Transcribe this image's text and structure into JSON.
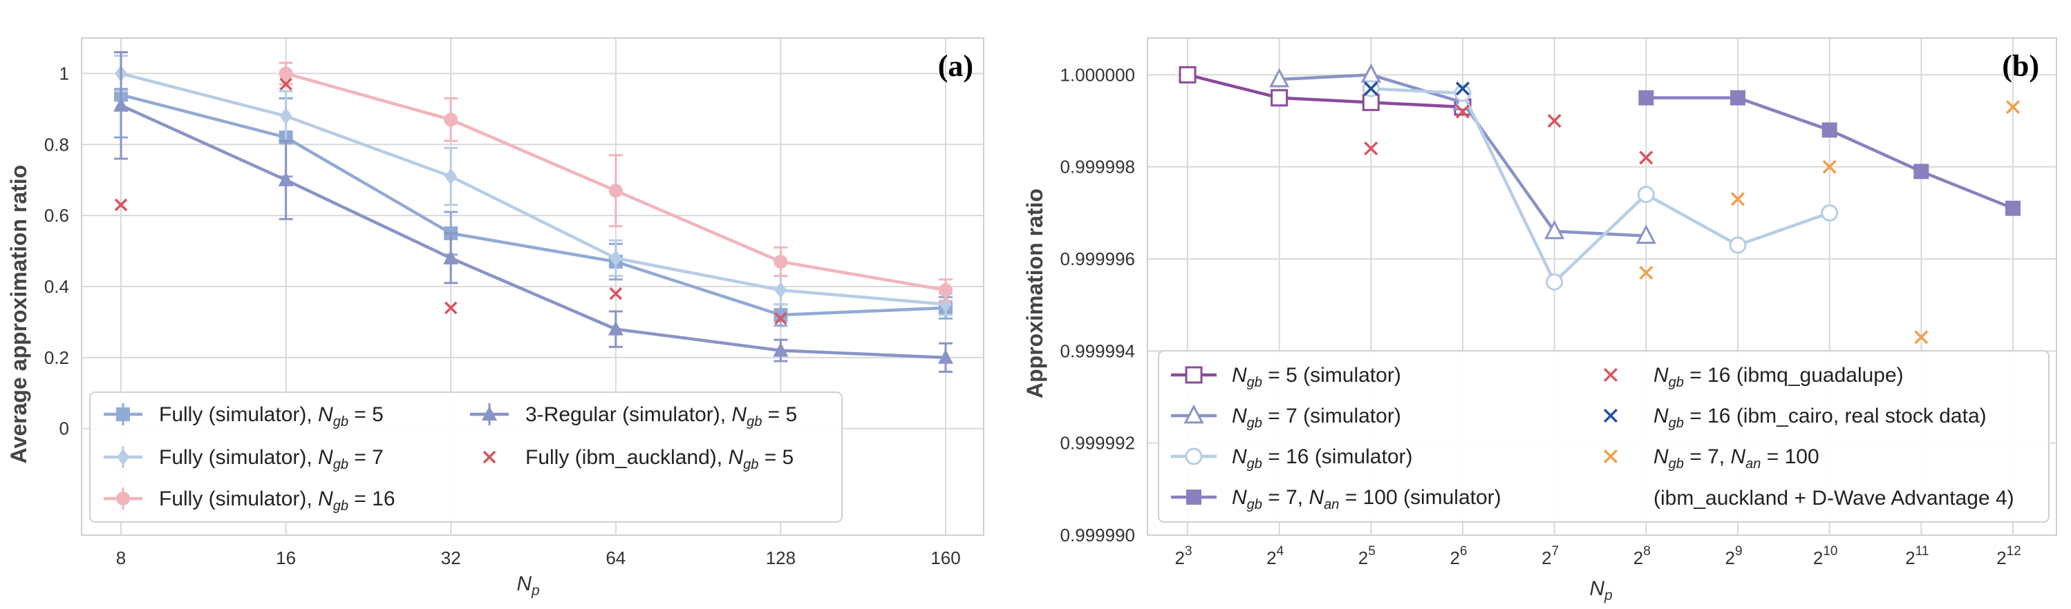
{
  "chart_data": [
    {
      "type": "line",
      "panel_label": "(a)",
      "xlabel": "N_p",
      "ylabel": "Average approximation ratio",
      "categories": [
        "8",
        "16",
        "32",
        "64",
        "128",
        "160"
      ],
      "ylim": [
        -0.3,
        1.1
      ],
      "yticks": [
        "0",
        "0.2",
        "0.4",
        "0.6",
        "0.8",
        "1"
      ],
      "yticks_values": [
        0,
        0.2,
        0.4,
        0.6,
        0.8,
        1.0
      ],
      "grid": true,
      "series": [
        {
          "name": "Fully (simulator), N_gb = 5",
          "legend_text": "Fully (simulator), ",
          "legend_sym": "N",
          "legend_sub": "gb",
          "legend_tail": " = 5",
          "color": "#91aad4",
          "marker": "square",
          "start": 0,
          "values": [
            0.94,
            0.82,
            0.55,
            0.47,
            0.32,
            0.34
          ],
          "errors": [
            0.12,
            0.11,
            0.06,
            0.05,
            0.03,
            0.03
          ]
        },
        {
          "name": "Fully (simulator), N_gb = 7",
          "legend_text": "Fully (simulator), ",
          "legend_sym": "N",
          "legend_sub": "gb",
          "legend_tail": " = 7",
          "color": "#b6cde6",
          "marker": "diamond",
          "start": 0,
          "values": [
            1.0,
            0.88,
            0.71,
            0.48,
            0.39,
            0.35
          ],
          "errors": [
            0.05,
            0.07,
            0.08,
            0.05,
            0.04,
            0.03
          ]
        },
        {
          "name": "Fully (simulator), N_gb = 16",
          "legend_text": "Fully (simulator), ",
          "legend_sym": "N",
          "legend_sub": "gb",
          "legend_tail": " = 16",
          "color": "#f2b4bc",
          "marker": "circle",
          "start": 1,
          "values": [
            null,
            1.0,
            0.87,
            0.67,
            0.47,
            0.39
          ],
          "errors": [
            null,
            0.03,
            0.06,
            0.1,
            0.04,
            0.03
          ]
        },
        {
          "name": "3-Regular (simulator), N_gb = 5",
          "legend_text": "3-Regular (simulator), ",
          "legend_sym": "N",
          "legend_sub": "gb",
          "legend_tail": " = 5",
          "color": "#8a93c6",
          "marker": "triangle",
          "start": 0,
          "values": [
            0.91,
            0.7,
            0.48,
            0.28,
            0.22,
            0.2
          ],
          "errors": [
            0.15,
            0.11,
            0.07,
            0.05,
            0.03,
            0.04
          ]
        },
        {
          "name": "Fully (ibm_auckland), N_gb = 5",
          "legend_text": "Fully (ibm_auckland), ",
          "legend_sym": "N",
          "legend_sub": "gb",
          "legend_tail": " = 5",
          "color": "#d9545e",
          "marker": "x",
          "start": 0,
          "values": [
            0.63,
            0.97,
            0.34,
            0.38,
            0.31,
            null
          ],
          "errors": null
        }
      ]
    },
    {
      "type": "line",
      "panel_label": "(b)",
      "xlabel": "N_p",
      "ylabel": "Approximation ratio",
      "x_exponents": [
        3,
        4,
        5,
        6,
        7,
        8,
        9,
        10,
        11,
        12
      ],
      "x_base": "2",
      "ylim": [
        0.99999,
        1.0000008
      ],
      "yticks": [
        "0.999990",
        "0.999992",
        "0.999994",
        "0.999996",
        "0.999998",
        "1.000000"
      ],
      "yticks_values": [
        0.99999,
        0.999992,
        0.999994,
        0.999996,
        0.999998,
        1.0
      ],
      "grid": true,
      "series": [
        {
          "name": "N_gb = 5 (simulator)",
          "legend_sym": "N",
          "legend_sub": "gb",
          "legend_tail": " = 5 (simulator)",
          "color": "#8b4a9c",
          "marker": "square-open",
          "line": true,
          "x": [
            3,
            4,
            5,
            6
          ],
          "y": [
            1.0,
            0.9999995,
            0.9999994,
            0.9999993
          ]
        },
        {
          "name": "N_gb = 7 (simulator)",
          "legend_sym": "N",
          "legend_sub": "gb",
          "legend_tail": " = 7 (simulator)",
          "color": "#8a93c6",
          "marker": "triangle-open",
          "line": true,
          "x": [
            4,
            5,
            6,
            7,
            8
          ],
          "y": [
            0.9999999,
            1.0,
            0.9999994,
            0.9999966,
            0.9999965
          ]
        },
        {
          "name": "N_gb = 16 (simulator)",
          "legend_sym": "N",
          "legend_sub": "gb",
          "legend_tail": " = 16 (simulator)",
          "color": "#b6cde6",
          "marker": "circle-open",
          "line": true,
          "x": [
            5,
            6,
            7,
            8,
            9,
            10
          ],
          "y": [
            0.9999997,
            0.9999996,
            0.9999955,
            0.9999974,
            0.9999963,
            0.999997
          ]
        },
        {
          "name": "N_gb = 7, N_an = 100 (simulator)",
          "legend_sym": "N",
          "legend_sub": "gb",
          "legend_tail": " = 7, ",
          "legend_sym2": "N",
          "legend_sub2": "an",
          "legend_tail2": " = 100 (simulator)",
          "color": "#8a7fbf",
          "marker": "square-filled",
          "line": true,
          "x": [
            8,
            9,
            10,
            11,
            12
          ],
          "y": [
            0.9999995,
            0.9999995,
            0.9999988,
            0.9999979,
            0.9999971
          ]
        },
        {
          "name": "N_gb = 16 (ibmq_guadalupe)",
          "legend_sym": "N",
          "legend_sub": "gb",
          "legend_tail": " = 16 (ibmq_guadalupe)",
          "color": "#d9545e",
          "marker": "x",
          "line": false,
          "x": [
            5,
            6,
            7,
            8
          ],
          "y": [
            0.9999984,
            0.9999992,
            0.999999,
            0.9999982
          ]
        },
        {
          "name": "N_gb = 16 (ibm_cairo, real stock data)",
          "legend_sym": "N",
          "legend_sub": "gb",
          "legend_tail": " = 16 (ibm_cairo, real stock data)",
          "color": "#1f4f9e",
          "marker": "x",
          "line": false,
          "x": [
            5,
            6
          ],
          "y": [
            0.9999997,
            0.9999997
          ]
        },
        {
          "name": "N_gb = 7, N_an = 100 (ibm_auckland + D-Wave Advantage 4)",
          "legend_sym": "N",
          "legend_sub": "gb",
          "legend_tail": " = 7, ",
          "legend_sym2": "N",
          "legend_sub2": "an",
          "legend_tail2": " = 100",
          "legend_line2": "(ibm_auckland + D-Wave Advantage 4)",
          "color": "#f0a04b",
          "marker": "x",
          "line": false,
          "x": [
            8,
            9,
            10,
            11,
            12
          ],
          "y": [
            0.9999957,
            0.9999973,
            0.999998,
            0.9999943,
            0.9999993
          ]
        }
      ]
    }
  ]
}
